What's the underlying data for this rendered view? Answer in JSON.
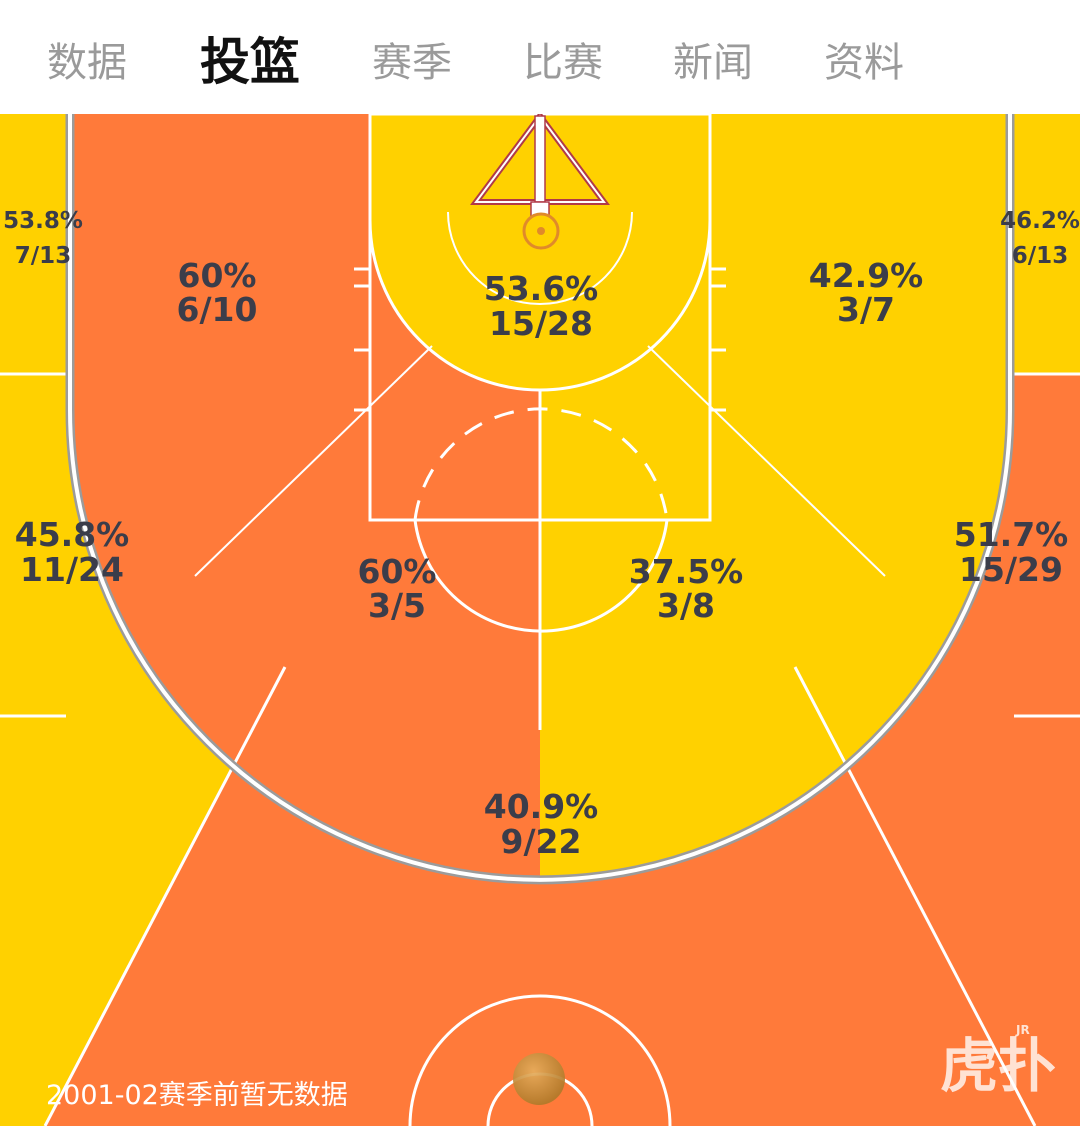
{
  "tabs": [
    {
      "label": "数据",
      "active": false
    },
    {
      "label": "投篮",
      "active": true
    },
    {
      "label": "赛季",
      "active": false
    },
    {
      "label": "比赛",
      "active": false
    },
    {
      "label": "新闻",
      "active": false
    },
    {
      "label": "资料",
      "active": false
    }
  ],
  "colors": {
    "hot": "#ff7a3a",
    "cold": "#ffd100",
    "lines": "#ffffff",
    "tab_active": "#111111",
    "tab_inactive": "#9a9a9a",
    "text": "#3b3d4a"
  },
  "zones": {
    "left_corner_three": {
      "pct": "53.8%",
      "made_attempted": "7/13",
      "heat": "cold"
    },
    "left_baseline_mid": {
      "pct": "60%",
      "made_attempted": "6/10",
      "heat": "hot"
    },
    "restricted_area": {
      "pct": "53.6%",
      "made_attempted": "15/28",
      "heat": "cold"
    },
    "right_baseline_mid": {
      "pct": "42.9%",
      "made_attempted": "3/7",
      "heat": "cold"
    },
    "right_corner_three": {
      "pct": "46.2%",
      "made_attempted": "6/13",
      "heat": "cold"
    },
    "left_wing_three": {
      "pct": "45.8%",
      "made_attempted": "11/24",
      "heat": "cold"
    },
    "left_elbow_mid": {
      "pct": "60%",
      "made_attempted": "3/5",
      "heat": "hot"
    },
    "right_elbow_mid": {
      "pct": "37.5%",
      "made_attempted": "3/8",
      "heat": "cold"
    },
    "right_wing_three": {
      "pct": "51.7%",
      "made_attempted": "15/29",
      "heat": "hot"
    },
    "top_key_three": {
      "pct": "40.9%",
      "made_attempted": "9/22",
      "heat": "hot"
    }
  },
  "footer_note": "2001-02赛季前暂无数据",
  "watermark_text": "虎扑",
  "watermark_superscript": "JR",
  "icons": {
    "ball": "basketball-icon",
    "watermark": "hupu-logo-watermark"
  }
}
